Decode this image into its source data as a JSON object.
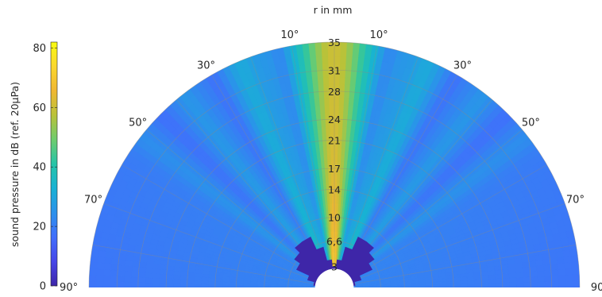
{
  "chart_data": {
    "type": "heatmap",
    "projection": "polar-half",
    "radial_label": "r in mm",
    "colorbar": {
      "label": "sound pressure in dB (ref. 20µPa)",
      "ticks": [
        "0",
        "20",
        "40",
        "60",
        "80"
      ],
      "tick_values": [
        0,
        20,
        40,
        60,
        80
      ],
      "range": [
        0,
        82
      ],
      "colormap": "parula"
    },
    "radial_ticks": [
      "3",
      "6,6",
      "10",
      "14",
      "17",
      "21",
      "24",
      "28",
      "31",
      "35"
    ],
    "radial_tick_values": [
      3,
      6.6,
      10,
      14,
      17,
      21,
      24,
      28,
      31,
      35
    ],
    "r_range": [
      0,
      35
    ],
    "angle_ticks": {
      "left": [
        "90°",
        "70°",
        "50°",
        "30°",
        "10°"
      ],
      "right": [
        "10°",
        "30°",
        "50°",
        "70°",
        "90°"
      ],
      "values": [
        90,
        70,
        50,
        30,
        10
      ]
    },
    "masked_region": {
      "description": "near-field (values outside mesh shown at 0 dB)",
      "angles_deg": [
        0,
        10,
        20,
        30,
        40,
        50,
        60,
        70,
        80,
        90
      ],
      "r_mm": [
        3,
        4,
        6,
        8,
        8,
        7,
        6,
        4,
        3,
        2.4
      ]
    },
    "grid": true
  }
}
